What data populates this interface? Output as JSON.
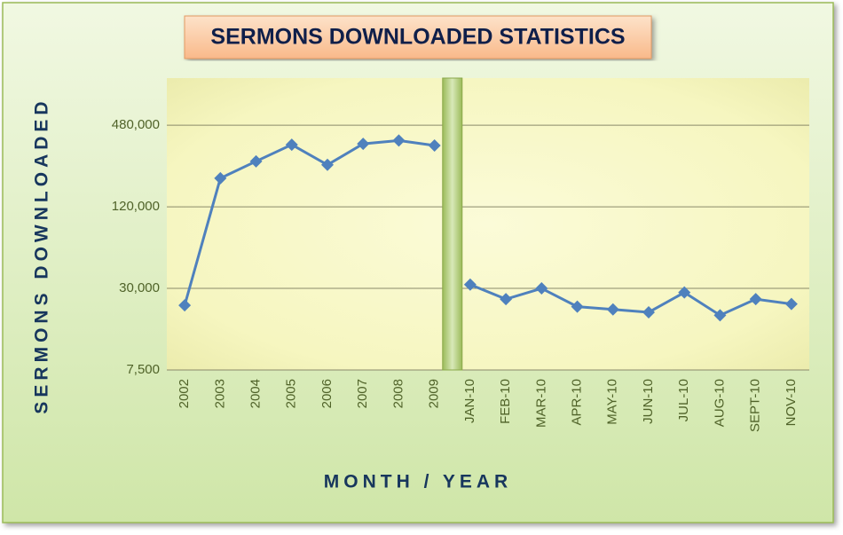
{
  "chart_data": {
    "type": "line",
    "title": "SERMONS DOWNLOADED STATISTICS",
    "x_label": "MONTH / YEAR",
    "y_label": "SERMONS DOWNLOADED",
    "categories": [
      "2002",
      "2003",
      "2004",
      "2005",
      "2006",
      "2007",
      "2008",
      "2009",
      "JAN-10",
      "FEB-10",
      "MAR-10",
      "APR-10",
      "MAY-10",
      "JUN-10",
      "JUL-10",
      "AUG-10",
      "SEPT-10",
      "NOV-10"
    ],
    "series": [
      {
        "color": "#4f81bd",
        "values": [
          22500,
          195000,
          260000,
          345000,
          245000,
          350000,
          370000,
          340000,
          null,
          null,
          null,
          null,
          null,
          null,
          null,
          null,
          null,
          null
        ]
      },
      {
        "color": "#4f81bd",
        "values": [
          null,
          null,
          null,
          null,
          null,
          null,
          null,
          null,
          32000,
          25000,
          30000,
          22000,
          21000,
          20000,
          28000,
          19000,
          25000,
          23000
        ]
      }
    ],
    "log_scale": true,
    "ylim": [
      7500,
      1070000
    ],
    "yticks": [
      {
        "value": 7500,
        "label": "7,500"
      },
      {
        "value": 30000,
        "label": "30,000"
      },
      {
        "value": 120000,
        "label": "120,000"
      },
      {
        "value": 480000,
        "label": "480,000"
      }
    ],
    "grid": true
  }
}
